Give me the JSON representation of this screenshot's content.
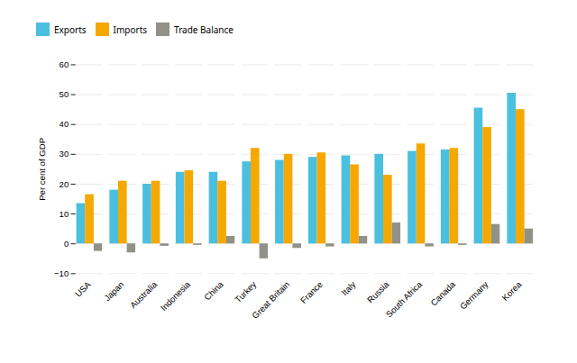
{
  "chart_data": {
    "type": "bar",
    "categories": [
      "USA",
      "Japan",
      "Australia",
      "Indonesia",
      "China",
      "Turkey",
      "Great Britain",
      "France",
      "Italy",
      "Russia",
      "South Africa",
      "Canada",
      "Germany",
      "Korea"
    ],
    "series": [
      {
        "name": "Exports",
        "color": "#4BBFDF",
        "values": [
          13.5,
          18.0,
          20.0,
          24.0,
          24.0,
          27.5,
          28.0,
          29.0,
          29.5,
          30.0,
          31.0,
          31.5,
          45.5,
          50.5
        ]
      },
      {
        "name": "Imports",
        "color": "#F5A800",
        "values": [
          16.5,
          21.0,
          21.0,
          24.5,
          21.0,
          32.0,
          30.0,
          30.5,
          26.5,
          23.0,
          33.5,
          32.0,
          39.0,
          45.0
        ]
      },
      {
        "name": "Trade Balance",
        "color": "#919187",
        "values": [
          -2.5,
          -3.0,
          -0.8,
          -0.5,
          2.5,
          -5.0,
          -1.5,
          -1.0,
          2.5,
          7.0,
          -1.0,
          -0.5,
          6.5,
          5.0
        ]
      }
    ],
    "ylabel": "Per cent of GDP",
    "ylim": [
      -10,
      60
    ],
    "yticks": [
      -10,
      0,
      10,
      20,
      30,
      40,
      50,
      60
    ],
    "grid": true,
    "legend": "upper left"
  }
}
